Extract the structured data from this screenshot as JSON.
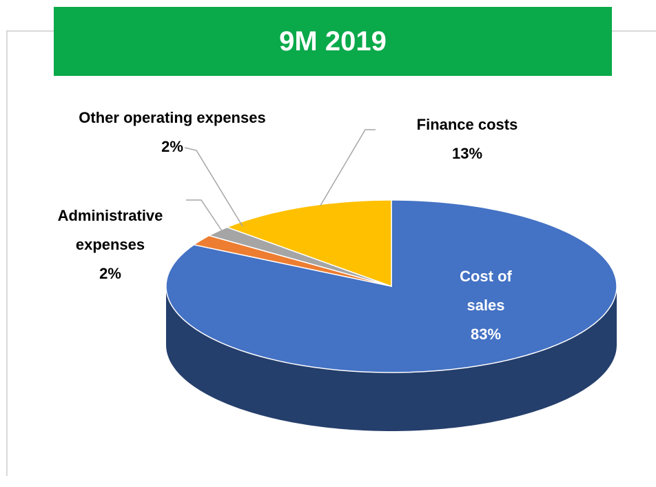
{
  "chart_data": {
    "type": "pie",
    "title": "9M 2019",
    "categories": [
      "Cost of sales",
      "Administrative expenses",
      "Other operating expenses",
      "Finance costs"
    ],
    "values": [
      83,
      2,
      2,
      13
    ],
    "value_labels": [
      "83%",
      "2%",
      "2%",
      "13%"
    ],
    "colors": [
      "#4472c4",
      "#ed7d31",
      "#a5a5a5",
      "#ffc000"
    ]
  }
}
